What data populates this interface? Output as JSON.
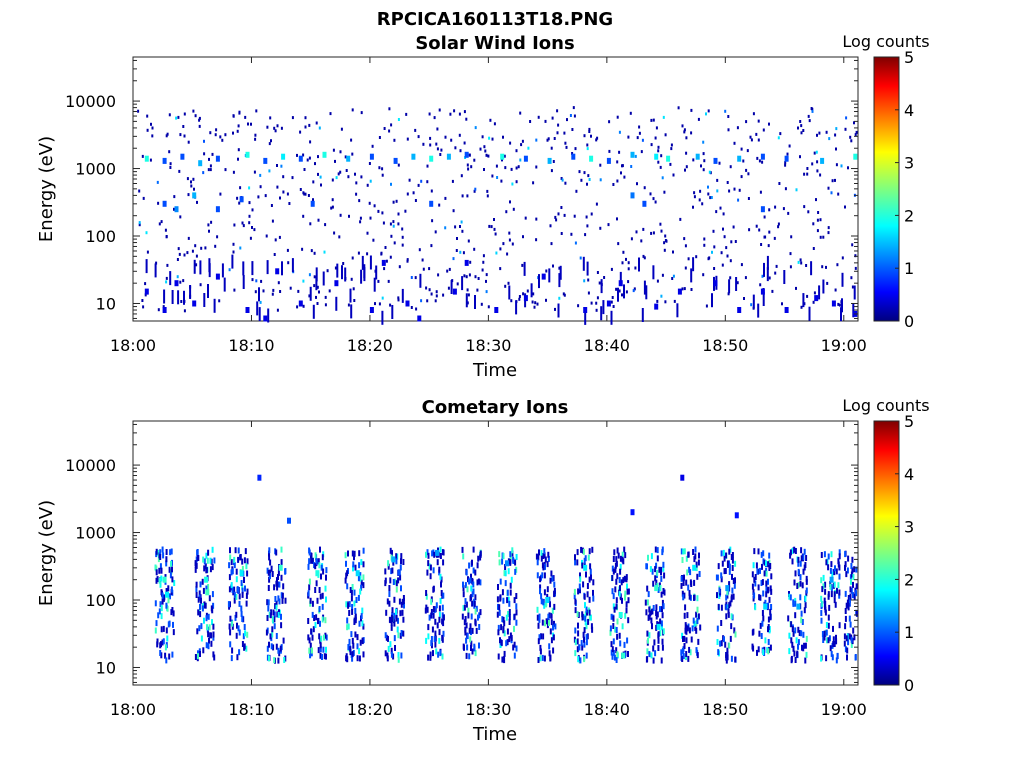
{
  "figure_title": "RPCICA160113T18.PNG",
  "colorbar_label": "Log counts",
  "colorbar_ticks": [
    "0",
    "1",
    "2",
    "3",
    "4",
    "5"
  ],
  "colors": {
    "jet_scale": [
      "#00007f",
      "#0000ff",
      "#007fff",
      "#00ffff",
      "#7fff7f",
      "#ffff00",
      "#ff7f00",
      "#ff0000",
      "#7f0000"
    ]
  },
  "chart_data": [
    {
      "type": "heatmap",
      "title": "Solar Wind Ions",
      "xlabel": "Time",
      "ylabel": "Energy (eV)",
      "x_ticks": [
        "18:00",
        "18:10",
        "18:20",
        "18:30",
        "18:40",
        "18:50",
        "19:00"
      ],
      "y_ticks": [
        "10",
        "100",
        "1000",
        "10000"
      ],
      "yscale": "log",
      "ylim": [
        5.5,
        45000
      ],
      "xlim_minutes": [
        0,
        61.2
      ],
      "color_range": [
        0,
        5
      ],
      "cells": [
        [
          1,
          1400,
          2
        ],
        [
          2.5,
          1300,
          1
        ],
        [
          4,
          1500,
          1
        ],
        [
          5.5,
          1200,
          1.5
        ],
        [
          7,
          1400,
          1
        ],
        [
          9.5,
          1600,
          2
        ],
        [
          11,
          1300,
          1
        ],
        [
          12.5,
          1500,
          1.8
        ],
        [
          14,
          1400,
          1
        ],
        [
          16,
          1600,
          2
        ],
        [
          18,
          1400,
          1.5
        ],
        [
          20,
          1500,
          1
        ],
        [
          22,
          1300,
          1
        ],
        [
          23.5,
          1500,
          1.5
        ],
        [
          25,
          1400,
          2
        ],
        [
          26.5,
          1500,
          1.5
        ],
        [
          28,
          1600,
          1
        ],
        [
          31,
          1500,
          2
        ],
        [
          33,
          1400,
          1
        ],
        [
          35,
          1300,
          1.5
        ],
        [
          37,
          1500,
          1
        ],
        [
          38.5,
          1400,
          2
        ],
        [
          40,
          1300,
          1
        ],
        [
          42,
          1600,
          1.5
        ],
        [
          44,
          1500,
          1.8
        ],
        [
          45,
          1400,
          2
        ],
        [
          47.5,
          1500,
          1.5
        ],
        [
          49,
          1300,
          1
        ],
        [
          51,
          1400,
          1.5
        ],
        [
          53,
          1500,
          1
        ],
        [
          55,
          1400,
          1
        ],
        [
          58,
          1300,
          1.5
        ],
        [
          60.8,
          1500,
          2
        ],
        [
          2.5,
          300,
          1
        ],
        [
          3.5,
          250,
          1.3
        ],
        [
          5,
          400,
          1.5
        ],
        [
          7,
          250,
          1
        ],
        [
          9,
          350,
          1
        ],
        [
          15,
          300,
          1
        ],
        [
          25,
          300,
          1
        ],
        [
          42,
          400,
          1.2
        ],
        [
          43,
          300,
          1
        ],
        [
          53,
          250,
          1
        ],
        [
          1,
          15,
          0.5
        ],
        [
          2.5,
          8,
          0.5
        ],
        [
          3.5,
          20,
          0.5
        ],
        [
          5,
          10,
          0.5
        ],
        [
          7,
          25,
          0.5
        ],
        [
          9.5,
          8,
          0.5
        ],
        [
          11,
          6,
          0.5
        ],
        [
          12,
          30,
          0.5
        ],
        [
          14,
          10,
          0.5
        ],
        [
          17,
          20,
          0.5
        ],
        [
          20,
          8,
          0.5
        ],
        [
          21,
          40,
          0.5
        ],
        [
          23,
          10,
          0.5
        ],
        [
          24,
          6,
          0.5
        ],
        [
          27,
          15,
          0.5
        ],
        [
          28,
          40,
          0.5
        ],
        [
          30.5,
          8,
          0.5
        ],
        [
          33,
          12,
          0.5
        ],
        [
          34.5,
          25,
          0.5
        ],
        [
          38,
          8,
          0.5
        ],
        [
          40,
          10,
          0.5
        ],
        [
          41,
          20,
          0.5
        ],
        [
          44,
          9,
          0.5
        ],
        [
          46,
          15,
          0.5
        ],
        [
          49,
          20,
          0.5
        ],
        [
          51,
          8,
          0.5
        ],
        [
          53,
          15,
          0.5
        ],
        [
          55,
          8,
          0.5
        ],
        [
          57.5,
          12,
          0.5
        ],
        [
          59,
          10,
          0.5
        ],
        [
          60.8,
          7,
          0.5
        ]
      ]
    },
    {
      "type": "heatmap",
      "title": "Cometary Ions",
      "xlabel": "Time",
      "ylabel": "Energy (eV)",
      "x_ticks": [
        "18:00",
        "18:10",
        "18:20",
        "18:30",
        "18:40",
        "18:50",
        "19:00"
      ],
      "y_ticks": [
        "10",
        "100",
        "1000",
        "10000"
      ],
      "yscale": "log",
      "ylim": [
        5.5,
        45000
      ],
      "xlim_minutes": [
        0,
        61.2
      ],
      "color_range": [
        0,
        5
      ],
      "bursts_minutes": [
        2.6,
        6.0,
        8.8,
        12.0,
        15.5,
        18.6,
        22.0,
        25.4,
        28.5,
        31.5,
        34.8,
        38.0,
        41.0,
        44.0,
        47.0,
        50.0,
        53.0,
        56.0,
        58.8,
        60.8
      ],
      "cells": [
        [
          2.5,
          200,
          2.1
        ],
        [
          2.7,
          120,
          1.8
        ],
        [
          6.0,
          200,
          2.0
        ],
        [
          6.1,
          130,
          2.2
        ],
        [
          9.0,
          250,
          1.8
        ],
        [
          12.3,
          300,
          2.1
        ],
        [
          15.4,
          250,
          2.0
        ],
        [
          18.8,
          250,
          1.7
        ],
        [
          21.8,
          400,
          1.5
        ],
        [
          25.5,
          500,
          1.4
        ],
        [
          31.4,
          350,
          1.3
        ],
        [
          34.8,
          100,
          1.7
        ],
        [
          38.0,
          300,
          1.8
        ],
        [
          41.0,
          60,
          2.0
        ],
        [
          41.2,
          15,
          2.1
        ],
        [
          44.0,
          150,
          2.1
        ],
        [
          44.2,
          40,
          1.8
        ],
        [
          47.2,
          300,
          1.8
        ],
        [
          50.0,
          150,
          1.4
        ],
        [
          53.2,
          80,
          1.7
        ],
        [
          56.0,
          80,
          1.5
        ],
        [
          58.8,
          200,
          1.4
        ],
        [
          10.5,
          6500,
          0.8
        ],
        [
          13,
          1500,
          1.0
        ],
        [
          42,
          2000,
          0.7
        ],
        [
          46.2,
          6500,
          0.5
        ],
        [
          50.8,
          1800,
          0.7
        ]
      ]
    }
  ]
}
